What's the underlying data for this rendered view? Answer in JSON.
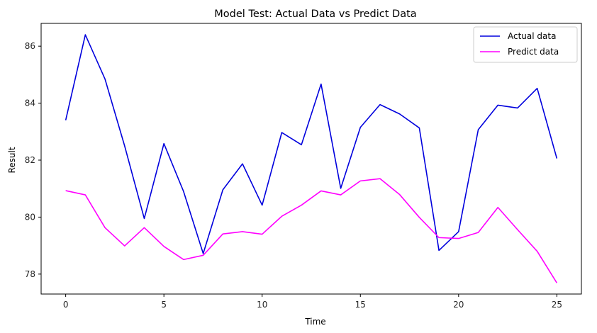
{
  "chart_data": {
    "type": "line",
    "title": "Model Test: Actual Data vs Predict Data",
    "xlabel": "Time",
    "ylabel": "Result",
    "xlim": [
      -1.25,
      26.25
    ],
    "ylim": [
      77.3,
      86.8
    ],
    "xticks": [
      0,
      5,
      10,
      15,
      20,
      25
    ],
    "yticks": [
      78,
      80,
      82,
      84,
      86
    ],
    "grid": false,
    "legend_position": "top-right",
    "x": [
      0,
      1,
      2,
      3,
      4,
      5,
      6,
      7,
      8,
      9,
      10,
      11,
      12,
      13,
      14,
      15,
      16,
      17,
      18,
      19,
      20,
      21,
      22,
      23,
      24,
      25
    ],
    "series": [
      {
        "name": "Actual data",
        "color": "#0000dd",
        "values": [
          83.4,
          86.4,
          84.85,
          82.5,
          79.95,
          82.58,
          80.9,
          78.72,
          80.96,
          81.87,
          80.42,
          82.97,
          82.54,
          84.67,
          81.01,
          83.15,
          83.95,
          83.62,
          83.13,
          78.83,
          79.49,
          83.07,
          83.93,
          83.83,
          84.52,
          82.06
        ]
      },
      {
        "name": "Predict data",
        "color": "#ff00ff",
        "values": [
          80.93,
          80.78,
          79.63,
          78.99,
          79.63,
          78.97,
          78.51,
          78.66,
          79.41,
          79.49,
          79.4,
          80.03,
          80.42,
          80.92,
          80.78,
          81.27,
          81.35,
          80.79,
          79.99,
          79.28,
          79.25,
          79.46,
          80.34,
          79.56,
          78.8,
          77.69
        ]
      }
    ]
  }
}
